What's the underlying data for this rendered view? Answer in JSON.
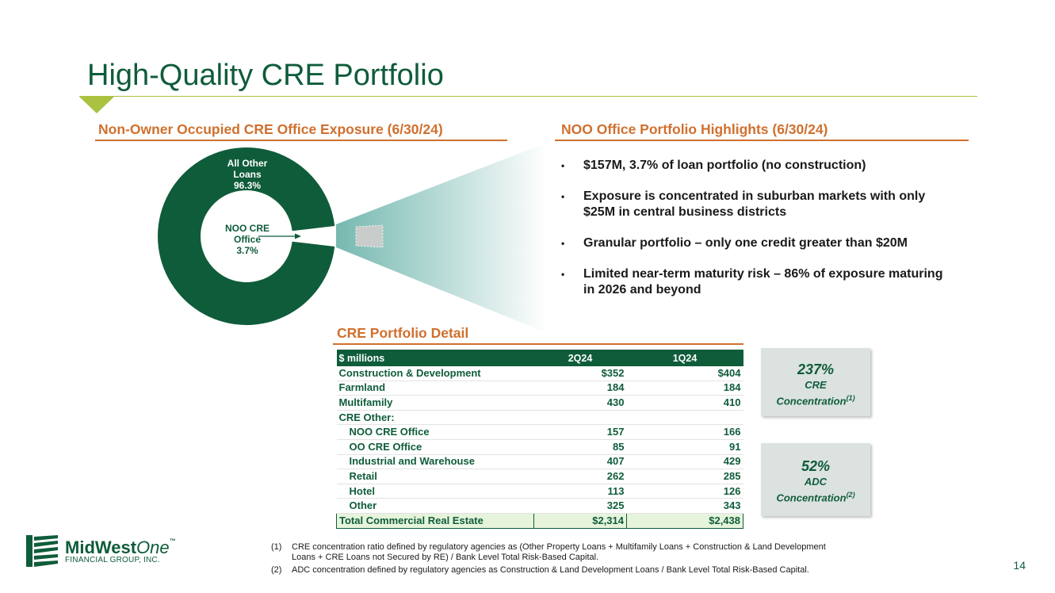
{
  "title": "High-Quality CRE Portfolio",
  "left_section": {
    "heading": "Non-Owner Occupied CRE Office Exposure (6/30/24)",
    "donut": {
      "outer_label_line1": "All Other",
      "outer_label_line2": "Loans",
      "outer_label_pct": "96.3%",
      "inner_label_line1": "NOO CRE",
      "inner_label_line2": "Office",
      "inner_label_pct": "3.7%",
      "main_color": "#0f5c3a",
      "slice_color": "#c8cdcc"
    }
  },
  "chart_data": {
    "type": "pie",
    "title": "Non-Owner Occupied CRE Office Exposure (6/30/24)",
    "categories": [
      "All Other Loans",
      "NOO CRE Office"
    ],
    "values": [
      96.3,
      3.7
    ]
  },
  "right_section": {
    "heading": "NOO Office Portfolio Highlights (6/30/24)",
    "bullets": [
      {
        "line1": "$157M, 3.7% of loan portfolio (no construction)",
        "line2": ""
      },
      {
        "line1": "Exposure is concentrated in suburban markets with only",
        "line2": "$25M in central business districts"
      },
      {
        "line1": "Granular portfolio – only one credit greater than $20M",
        "line2": ""
      },
      {
        "line1": "Limited near-term maturity risk – 86% of exposure maturing",
        "line2": "in 2026 and beyond"
      }
    ]
  },
  "detail": {
    "heading": "CRE Portfolio Detail",
    "header": {
      "label": "$ millions",
      "col1": "2Q24",
      "col2": "1Q24"
    },
    "rows": [
      {
        "label": "Construction & Development",
        "v1": "$352",
        "v2": "$404"
      },
      {
        "label": "Farmland",
        "v1": "184",
        "v2": "184"
      },
      {
        "label": "Multifamily",
        "v1": "430",
        "v2": "410"
      },
      {
        "label": "CRE Other:",
        "v1": "",
        "v2": ""
      },
      {
        "label": "NOO CRE Office",
        "v1": "157",
        "v2": "166"
      },
      {
        "label": "OO CRE Office",
        "v1": "85",
        "v2": "91"
      },
      {
        "label": "Industrial and Warehouse",
        "v1": "407",
        "v2": "429"
      },
      {
        "label": "Retail",
        "v1": "262",
        "v2": "285"
      },
      {
        "label": "Hotel",
        "v1": "113",
        "v2": "126"
      },
      {
        "label": "Other",
        "v1": "325",
        "v2": "343"
      }
    ],
    "total": {
      "label": "Total Commercial Real Estate",
      "v1": "$2,314",
      "v2": "$2,438"
    }
  },
  "boxes": [
    {
      "value": "237%",
      "line1": "CRE",
      "line2": "Concentration",
      "sup": "(1)"
    },
    {
      "value": "52%",
      "line1": "ADC",
      "line2": "Concentration",
      "sup": "(2)"
    }
  ],
  "footnotes": [
    {
      "num": "(1)",
      "line1": "CRE concentration ratio defined by regulatory agencies as (Other Property Loans + Multifamily Loans + Construction & Land Development",
      "line2": "Loans + CRE Loans not Secured by RE) / Bank Level Total Risk-Based Capital."
    },
    {
      "num": "(2)",
      "line1": "ADC concentration defined by regulatory agencies as Construction & Land Development Loans / Bank Level Total Risk-Based Capital.",
      "line2": ""
    }
  ],
  "logo": {
    "name_a": "MidWest",
    "name_b": "One",
    "tm": "™",
    "sub": "FINANCIAL GROUP, INC."
  },
  "page_number": "14"
}
